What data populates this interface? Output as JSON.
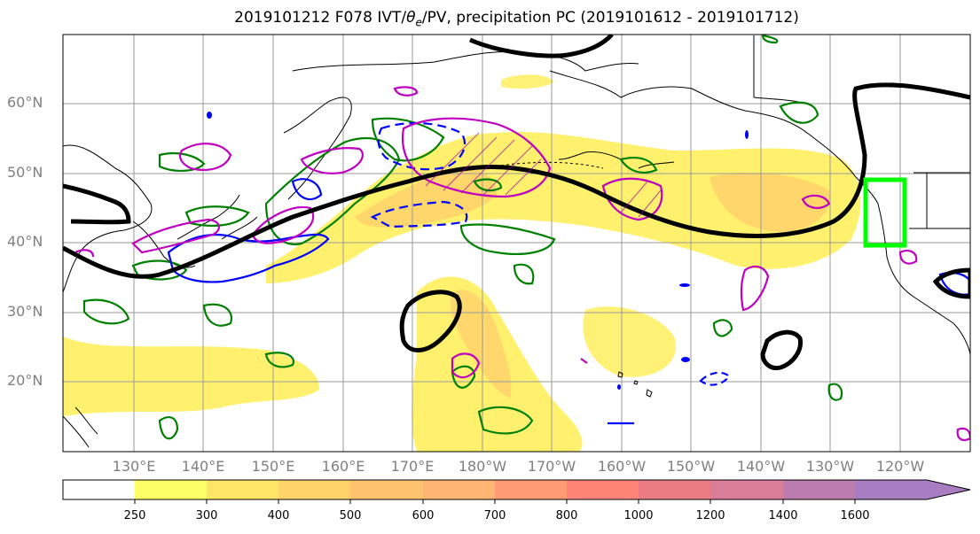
{
  "title": {
    "prefix": "2019101212 F078 IVT/",
    "theta": "θ",
    "theta_sub": "e",
    "suffix": "/PV, precipitation PC (2019101612 - 2019101712)"
  },
  "map": {
    "lat_labels": [
      "60°N",
      "50°N",
      "40°N",
      "30°N",
      "20°N"
    ],
    "lon_labels": [
      "130°E",
      "140°E",
      "150°E",
      "160°E",
      "170°E",
      "180°W",
      "170°W",
      "160°W",
      "150°W",
      "140°W",
      "130°W",
      "120°W"
    ],
    "colors": {
      "ivt_shading": "#fff066",
      "ivt_shading_mid": "#ffd16b",
      "ivt_shading_high": "#ffbf78",
      "jet_contour": "#000000",
      "pv_contour": "#008000",
      "theta_e_positive": "#c000c0",
      "theta_e_negative": "#0000ff",
      "highlight_box": "#00ff00",
      "coastline": "#000000",
      "grid": "#999999"
    }
  },
  "colorbar": {
    "labels": [
      "250",
      "300",
      "400",
      "500",
      "600",
      "700",
      "800",
      "1000",
      "1200",
      "1400",
      "1600"
    ],
    "colors": [
      "#ffffff",
      "#ffff66",
      "#ffe566",
      "#ffd36a",
      "#ffc36f",
      "#ffb675",
      "#ff9c76",
      "#ff8478",
      "#ec7c84",
      "#d97d98",
      "#bd7cae",
      "#a87dc1"
    ]
  }
}
